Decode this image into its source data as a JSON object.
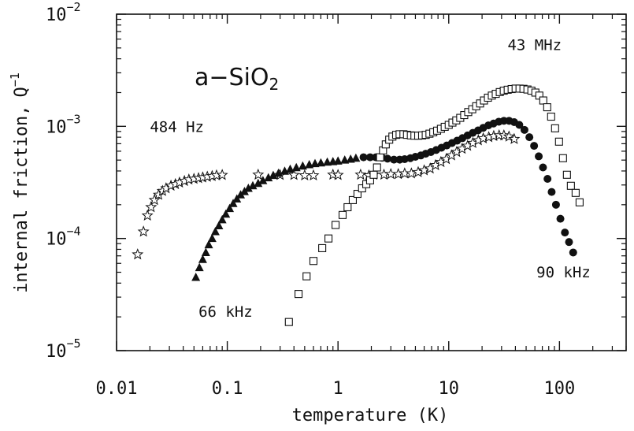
{
  "chart_data": {
    "type": "scatter",
    "title": "a−SiO",
    "title_subscript": "2",
    "xlabel": "temperature  (K)",
    "ylabel": "internal  friction,",
    "ylabel_symbol": "Q",
    "ylabel_exponent": "−1",
    "x_scale": "log",
    "y_scale": "log",
    "xlim": [
      0.01,
      400
    ],
    "ylim": [
      1e-05,
      0.01
    ],
    "grid": false,
    "x_ticks": [
      {
        "value": 0.01,
        "label": "0.01"
      },
      {
        "value": 0.1,
        "label": "0.1"
      },
      {
        "value": 1,
        "label": "1"
      },
      {
        "value": 10,
        "label": "10"
      },
      {
        "value": 100,
        "label": "100"
      }
    ],
    "y_ticks": [
      {
        "value": 1e-05,
        "base": "10",
        "exp": "−5"
      },
      {
        "value": 0.0001,
        "base": "10",
        "exp": "−4"
      },
      {
        "value": 0.001,
        "base": "10",
        "exp": "−3"
      },
      {
        "value": 0.01,
        "base": "10",
        "exp": "−2"
      }
    ],
    "series": [
      {
        "name": "484  Hz",
        "marker": "star",
        "points": [
          [
            0.0155,
            7.2e-05
          ],
          [
            0.0175,
            0.000115
          ],
          [
            0.019,
            0.00016
          ],
          [
            0.0205,
            0.00019
          ],
          [
            0.022,
            0.00022
          ],
          [
            0.024,
            0.000245
          ],
          [
            0.026,
            0.000265
          ],
          [
            0.028,
            0.00028
          ],
          [
            0.031,
            0.000295
          ],
          [
            0.034,
            0.000305
          ],
          [
            0.037,
            0.000315
          ],
          [
            0.041,
            0.000325
          ],
          [
            0.045,
            0.000335
          ],
          [
            0.05,
            0.00034
          ],
          [
            0.055,
            0.000345
          ],
          [
            0.06,
            0.00035
          ],
          [
            0.066,
            0.000355
          ],
          [
            0.073,
            0.00036
          ],
          [
            0.08,
            0.000365
          ],
          [
            0.09,
            0.000368
          ],
          [
            0.19,
            0.00037
          ],
          [
            0.3,
            0.000368
          ],
          [
            0.4,
            0.000368
          ],
          [
            0.5,
            0.000365
          ],
          [
            0.6,
            0.000365
          ],
          [
            0.9,
            0.00037
          ],
          [
            1.0,
            0.000368
          ],
          [
            1.6,
            0.00037
          ],
          [
            1.9,
            0.000365
          ],
          [
            2.1,
            0.00037
          ],
          [
            2.6,
            0.00037
          ],
          [
            3.0,
            0.000375
          ],
          [
            3.5,
            0.000375
          ],
          [
            4.0,
            0.00038
          ],
          [
            4.6,
            0.00038
          ],
          [
            5.3,
            0.00039
          ],
          [
            6.0,
            0.000405
          ],
          [
            6.8,
            0.00042
          ],
          [
            7.6,
            0.00045
          ],
          [
            8.5,
            0.00048
          ],
          [
            9.5,
            0.00051
          ],
          [
            10.6,
            0.00055
          ],
          [
            11.8,
            0.00059
          ],
          [
            13.2,
            0.00063
          ],
          [
            14.8,
            0.00067
          ],
          [
            16.5,
            0.00071
          ],
          [
            18.5,
            0.00075
          ],
          [
            20.5,
            0.00078
          ],
          [
            23,
            0.0008
          ],
          [
            25.5,
            0.00082
          ],
          [
            28.5,
            0.00083
          ],
          [
            31.5,
            0.00083
          ],
          [
            35,
            0.00081
          ],
          [
            39,
            0.00077
          ]
        ]
      },
      {
        "name": "66  kHz",
        "marker": "triangle",
        "points": [
          [
            0.052,
            4.5e-05
          ],
          [
            0.056,
            5.5e-05
          ],
          [
            0.06,
            6.5e-05
          ],
          [
            0.064,
            7.5e-05
          ],
          [
            0.068,
            8.8e-05
          ],
          [
            0.073,
            0.0001
          ],
          [
            0.078,
            0.000115
          ],
          [
            0.084,
            0.00013
          ],
          [
            0.09,
            0.000147
          ],
          [
            0.097,
            0.000165
          ],
          [
            0.105,
            0.000185
          ],
          [
            0.113,
            0.000205
          ],
          [
            0.122,
            0.000225
          ],
          [
            0.132,
            0.000245
          ],
          [
            0.143,
            0.000262
          ],
          [
            0.155,
            0.00028
          ],
          [
            0.17,
            0.000295
          ],
          [
            0.19,
            0.00031
          ],
          [
            0.21,
            0.000328
          ],
          [
            0.235,
            0.000348
          ],
          [
            0.26,
            0.000365
          ],
          [
            0.29,
            0.000382
          ],
          [
            0.33,
            0.000398
          ],
          [
            0.37,
            0.000415
          ],
          [
            0.42,
            0.000428
          ],
          [
            0.48,
            0.000442
          ],
          [
            0.55,
            0.000455
          ],
          [
            0.62,
            0.000465
          ],
          [
            0.7,
            0.000472
          ],
          [
            0.8,
            0.00048
          ],
          [
            0.9,
            0.000485
          ],
          [
            1.0,
            0.00049
          ],
          [
            1.15,
            0.0005
          ],
          [
            1.3,
            0.00051
          ],
          [
            1.45,
            0.00052
          ]
        ]
      },
      {
        "name": "90  kHz",
        "marker": "filled-circle",
        "points": [
          [
            1.7,
            0.00053
          ],
          [
            1.95,
            0.00053
          ],
          [
            2.2,
            0.00053
          ],
          [
            2.5,
            0.000525
          ],
          [
            2.8,
            0.000515
          ],
          [
            3.2,
            0.000505
          ],
          [
            3.6,
            0.000505
          ],
          [
            4.0,
            0.00051
          ],
          [
            4.5,
            0.00052
          ],
          [
            5.0,
            0.000535
          ],
          [
            5.6,
            0.00055
          ],
          [
            6.2,
            0.00057
          ],
          [
            6.9,
            0.00059
          ],
          [
            7.7,
            0.000615
          ],
          [
            8.6,
            0.000645
          ],
          [
            9.6,
            0.000675
          ],
          [
            10.7,
            0.00071
          ],
          [
            11.9,
            0.000745
          ],
          [
            13.3,
            0.000785
          ],
          [
            14.8,
            0.00083
          ],
          [
            16.5,
            0.000875
          ],
          [
            18.4,
            0.00092
          ],
          [
            20.5,
            0.00097
          ],
          [
            22.8,
            0.00102
          ],
          [
            25.4,
            0.00106
          ],
          [
            28.3,
            0.0011
          ],
          [
            31.5,
            0.00112
          ],
          [
            35.1,
            0.00112
          ],
          [
            39,
            0.00109
          ],
          [
            43.4,
            0.00103
          ],
          [
            48.3,
            0.00093
          ],
          [
            53.5,
            0.0008
          ],
          [
            59,
            0.00067
          ],
          [
            65,
            0.00054
          ],
          [
            71,
            0.00043
          ],
          [
            78,
            0.00034
          ],
          [
            85,
            0.00026
          ],
          [
            93,
            0.0002
          ],
          [
            102,
            0.00015
          ],
          [
            112,
            0.000113
          ],
          [
            122,
            9.3e-05
          ],
          [
            133,
            7.5e-05
          ]
        ]
      },
      {
        "name": "43  MHz",
        "marker": "open-square",
        "points": [
          [
            0.36,
            1.8e-05
          ],
          [
            0.44,
            3.2e-05
          ],
          [
            0.52,
            4.6e-05
          ],
          [
            0.6,
            6.3e-05
          ],
          [
            0.72,
            8.2e-05
          ],
          [
            0.82,
            0.0001
          ],
          [
            0.95,
            0.000132
          ],
          [
            1.1,
            0.000162
          ],
          [
            1.22,
            0.00019
          ],
          [
            1.36,
            0.00022
          ],
          [
            1.5,
            0.00025
          ],
          [
            1.65,
            0.00028
          ],
          [
            1.8,
            0.000305
          ],
          [
            1.95,
            0.00033
          ],
          [
            2.1,
            0.00037
          ],
          [
            2.25,
            0.00043
          ],
          [
            2.4,
            0.00053
          ],
          [
            2.55,
            0.00061
          ],
          [
            2.7,
            0.00069
          ],
          [
            2.9,
            0.00076
          ],
          [
            3.1,
            0.00081
          ],
          [
            3.35,
            0.00084
          ],
          [
            3.6,
            0.00085
          ],
          [
            3.9,
            0.00085
          ],
          [
            4.2,
            0.00084
          ],
          [
            4.55,
            0.00083
          ],
          [
            4.9,
            0.000825
          ],
          [
            5.3,
            0.000825
          ],
          [
            5.75,
            0.00083
          ],
          [
            6.2,
            0.00084
          ],
          [
            6.7,
            0.00086
          ],
          [
            7.25,
            0.000885
          ],
          [
            7.85,
            0.000915
          ],
          [
            8.5,
            0.00095
          ],
          [
            9.2,
            0.00099
          ],
          [
            10,
            0.00103
          ],
          [
            10.8,
            0.00108
          ],
          [
            11.7,
            0.00113
          ],
          [
            12.7,
            0.00119
          ],
          [
            13.8,
            0.00126
          ],
          [
            15,
            0.00134
          ],
          [
            16.3,
            0.00142
          ],
          [
            17.7,
            0.00151
          ],
          [
            19.2,
            0.0016
          ],
          [
            20.8,
            0.0017
          ],
          [
            22.6,
            0.0018
          ],
          [
            24.5,
            0.00188
          ],
          [
            26.6,
            0.00195
          ],
          [
            28.9,
            0.00202
          ],
          [
            31.4,
            0.00208
          ],
          [
            34.1,
            0.00212
          ],
          [
            37,
            0.00215
          ],
          [
            40.2,
            0.00217
          ],
          [
            43.6,
            0.00217
          ],
          [
            47.3,
            0.00216
          ],
          [
            51.4,
            0.00213
          ],
          [
            55.8,
            0.00208
          ],
          [
            60.6,
            0.002
          ],
          [
            65.8,
            0.00188
          ],
          [
            71.4,
            0.0017
          ],
          [
            77.5,
            0.00148
          ],
          [
            84.1,
            0.00122
          ],
          [
            91.3,
            0.00096
          ],
          [
            99.1,
            0.00073
          ],
          [
            107.6,
            0.00052
          ],
          [
            116.8,
            0.00037
          ],
          [
            126.8,
            0.000295
          ],
          [
            140,
            0.000255
          ],
          [
            152,
            0.00021
          ]
        ]
      }
    ],
    "annotations": [
      {
        "text": "484  Hz",
        "series": "484  Hz",
        "at": [
          0.02,
          0.00089
        ]
      },
      {
        "text": "66  kHz",
        "series": "66  kHz",
        "at": [
          0.055,
          2e-05
        ]
      },
      {
        "text": "90  kHz",
        "series": "90  kHz",
        "at": [
          62,
          4.5e-05
        ]
      },
      {
        "text": "43  MHz",
        "series": "43  MHz",
        "at": [
          34,
          0.0048
        ]
      }
    ]
  }
}
